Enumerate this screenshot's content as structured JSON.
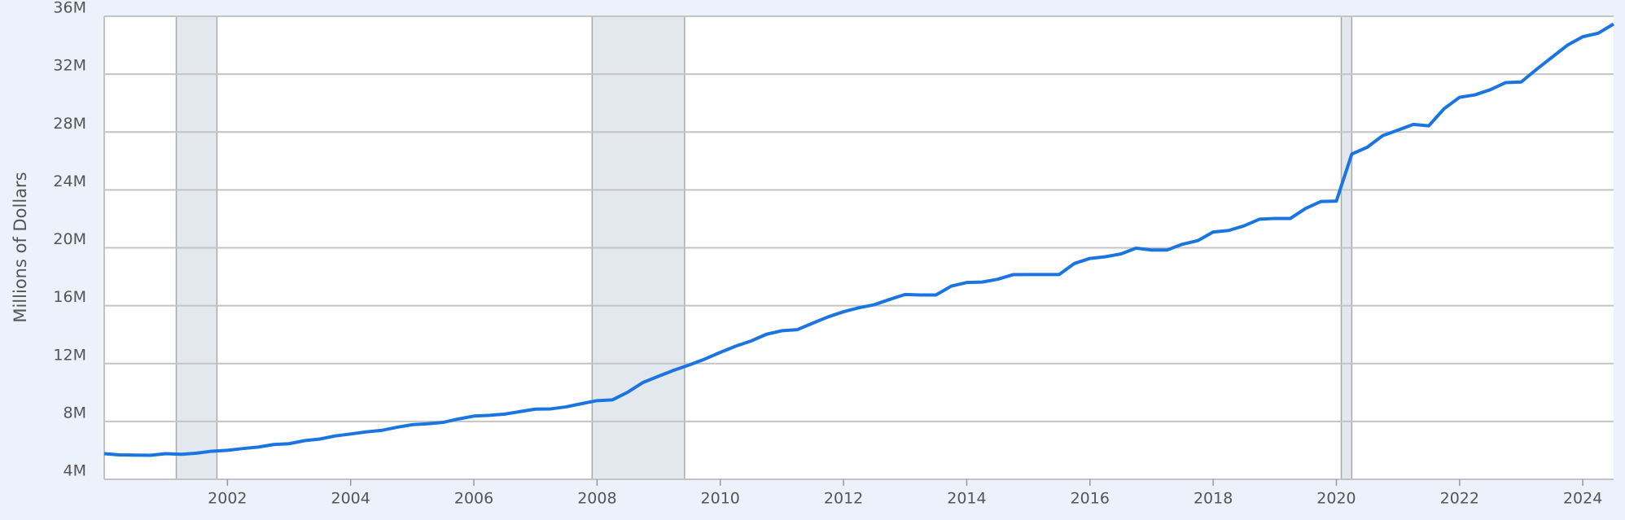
{
  "chart_data": {
    "type": "line",
    "y_label": "Millions of Dollars",
    "x": [
      2000,
      2000.25,
      2000.5,
      2000.75,
      2001,
      2001.25,
      2001.5,
      2001.75,
      2002,
      2002.25,
      2002.5,
      2002.75,
      2003,
      2003.25,
      2003.5,
      2003.75,
      2004,
      2004.25,
      2004.5,
      2004.75,
      2005,
      2005.25,
      2005.5,
      2005.75,
      2006,
      2006.25,
      2006.5,
      2006.75,
      2007,
      2007.25,
      2007.5,
      2007.75,
      2008,
      2008.25,
      2008.5,
      2008.75,
      2009,
      2009.25,
      2009.5,
      2009.75,
      2010,
      2010.25,
      2010.5,
      2010.75,
      2011,
      2011.25,
      2011.5,
      2011.75,
      2012,
      2012.25,
      2012.5,
      2012.75,
      2013,
      2013.25,
      2013.5,
      2013.75,
      2014,
      2014.25,
      2014.5,
      2014.75,
      2015,
      2015.25,
      2015.5,
      2015.75,
      2016,
      2016.25,
      2016.5,
      2016.75,
      2017,
      2017.25,
      2017.5,
      2017.75,
      2018,
      2018.25,
      2018.5,
      2018.75,
      2019,
      2019.25,
      2019.5,
      2019.75,
      2020,
      2020.25,
      2020.5,
      2020.75,
      2021,
      2021.25,
      2021.5,
      2021.75,
      2022,
      2022.25,
      2022.5,
      2022.75,
      2023,
      2023.25,
      2023.5,
      2023.75,
      2024,
      2024.25,
      2024.5
    ],
    "values": [
      5773000,
      5685000,
      5674000,
      5662000,
      5773000,
      5727000,
      5807000,
      5943000,
      6006000,
      6126000,
      6228000,
      6406000,
      6460000,
      6670000,
      6783000,
      6998000,
      7132000,
      7274000,
      7379000,
      7596000,
      7776000,
      7836000,
      7933000,
      8170000,
      8371000,
      8420000,
      8507000,
      8680000,
      8849000,
      8868000,
      9008000,
      9229000,
      9437000,
      9492000,
      10025000,
      10700000,
      11127000,
      11545000,
      11910000,
      12311000,
      12773000,
      13202000,
      13562000,
      14025000,
      14270000,
      14343000,
      14790000,
      15223000,
      15582000,
      15856000,
      16066000,
      16433000,
      16772000,
      16738000,
      16738000,
      17352000,
      17602000,
      17632000,
      17824000,
      18141000,
      18152000,
      18152000,
      18151000,
      18922000,
      19264000,
      19382000,
      19573000,
      19977000,
      19847000,
      19845000,
      20245000,
      20493000,
      21090000,
      21195000,
      21516000,
      21974000,
      22028000,
      22023000,
      22719000,
      23201000,
      23224000,
      26477000,
      26945000,
      27748000,
      28133000,
      28529000,
      28429000,
      29617000,
      30401000,
      30569000,
      30929000,
      31419000,
      31458000,
      32332000,
      33167000,
      34001000,
      34587000,
      34831000,
      35464000
    ],
    "color": "#1a75e0",
    "shaded_ranges": [
      [
        2001.17,
        2001.83
      ],
      [
        2007.92,
        2009.42
      ],
      [
        2020.08,
        2020.25
      ]
    ],
    "shade_color": "#e3e7ee",
    "xlim": [
      2000,
      2024.5
    ],
    "xticks": [
      2002,
      2004,
      2006,
      2008,
      2010,
      2012,
      2014,
      2016,
      2018,
      2020,
      2022,
      2024
    ],
    "ylim": [
      4000000,
      36000000
    ],
    "yticks": [
      {
        "value": 4000000,
        "label": "4M"
      },
      {
        "value": 8000000,
        "label": "8M"
      },
      {
        "value": 12000000,
        "label": "12M"
      },
      {
        "value": 16000000,
        "label": "16M"
      },
      {
        "value": 20000000,
        "label": "20M"
      },
      {
        "value": 24000000,
        "label": "24M"
      },
      {
        "value": 28000000,
        "label": "28M"
      },
      {
        "value": 32000000,
        "label": "32M"
      },
      {
        "value": 36000000,
        "label": "36M"
      }
    ],
    "grid": true
  }
}
